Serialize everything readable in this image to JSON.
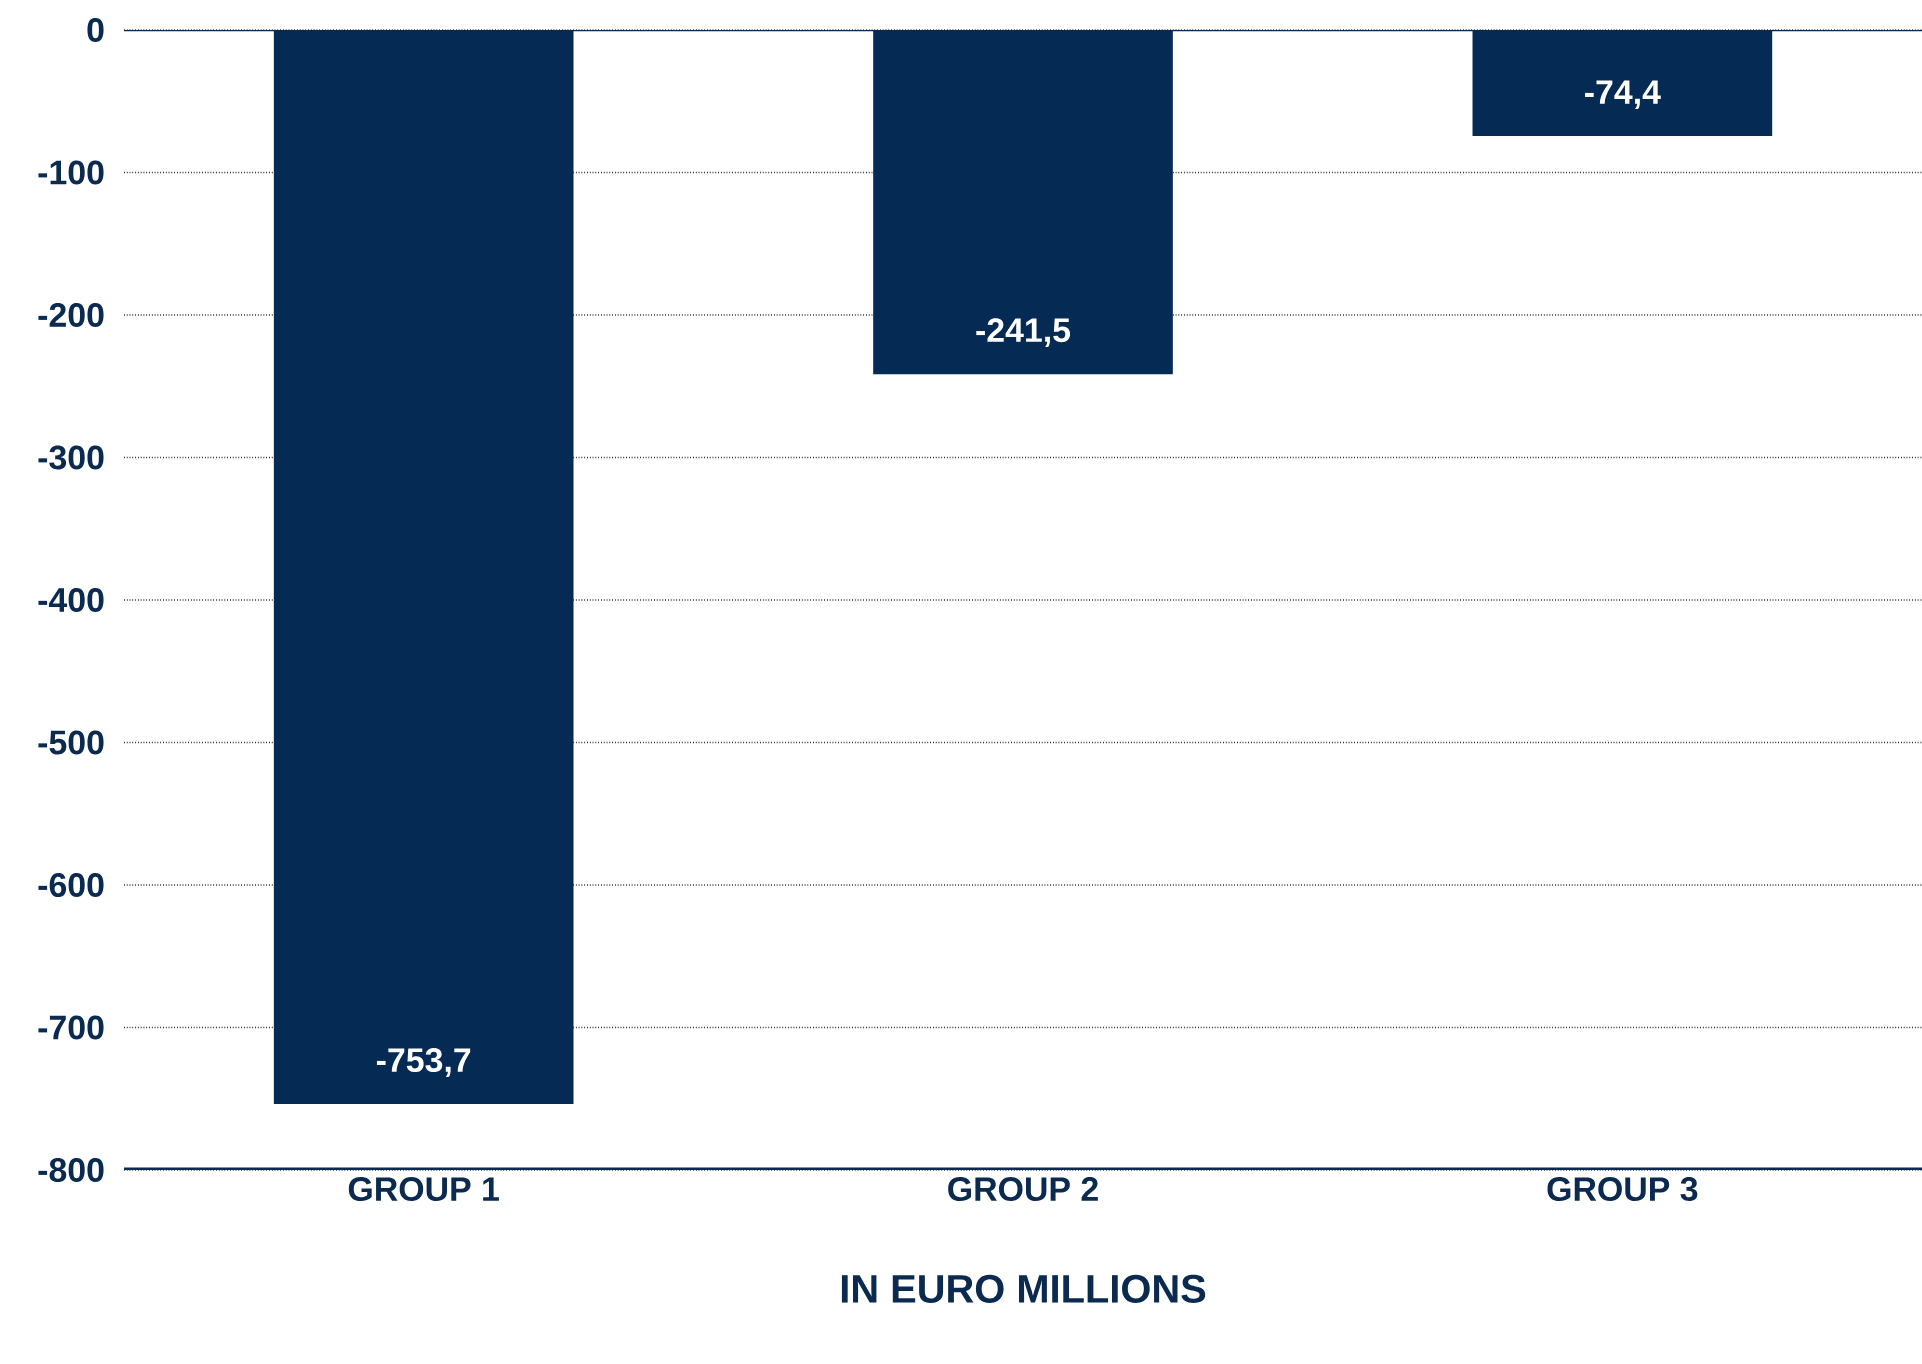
{
  "chart_data": {
    "type": "bar",
    "xlabel": "IN EURO MILLIONS",
    "categories": [
      "GROUP 1",
      "GROUP 2",
      "GROUP 3"
    ],
    "values": [
      -753.7,
      -241.5,
      -74.4
    ],
    "value_labels": [
      "-753,7",
      "-241,5",
      "-74,4"
    ],
    "color": "#052a54",
    "ylim": [
      -800,
      0
    ],
    "yticks": [
      0,
      -100,
      -200,
      -300,
      -400,
      -500,
      -600,
      -700,
      -800
    ],
    "grid": "y"
  }
}
